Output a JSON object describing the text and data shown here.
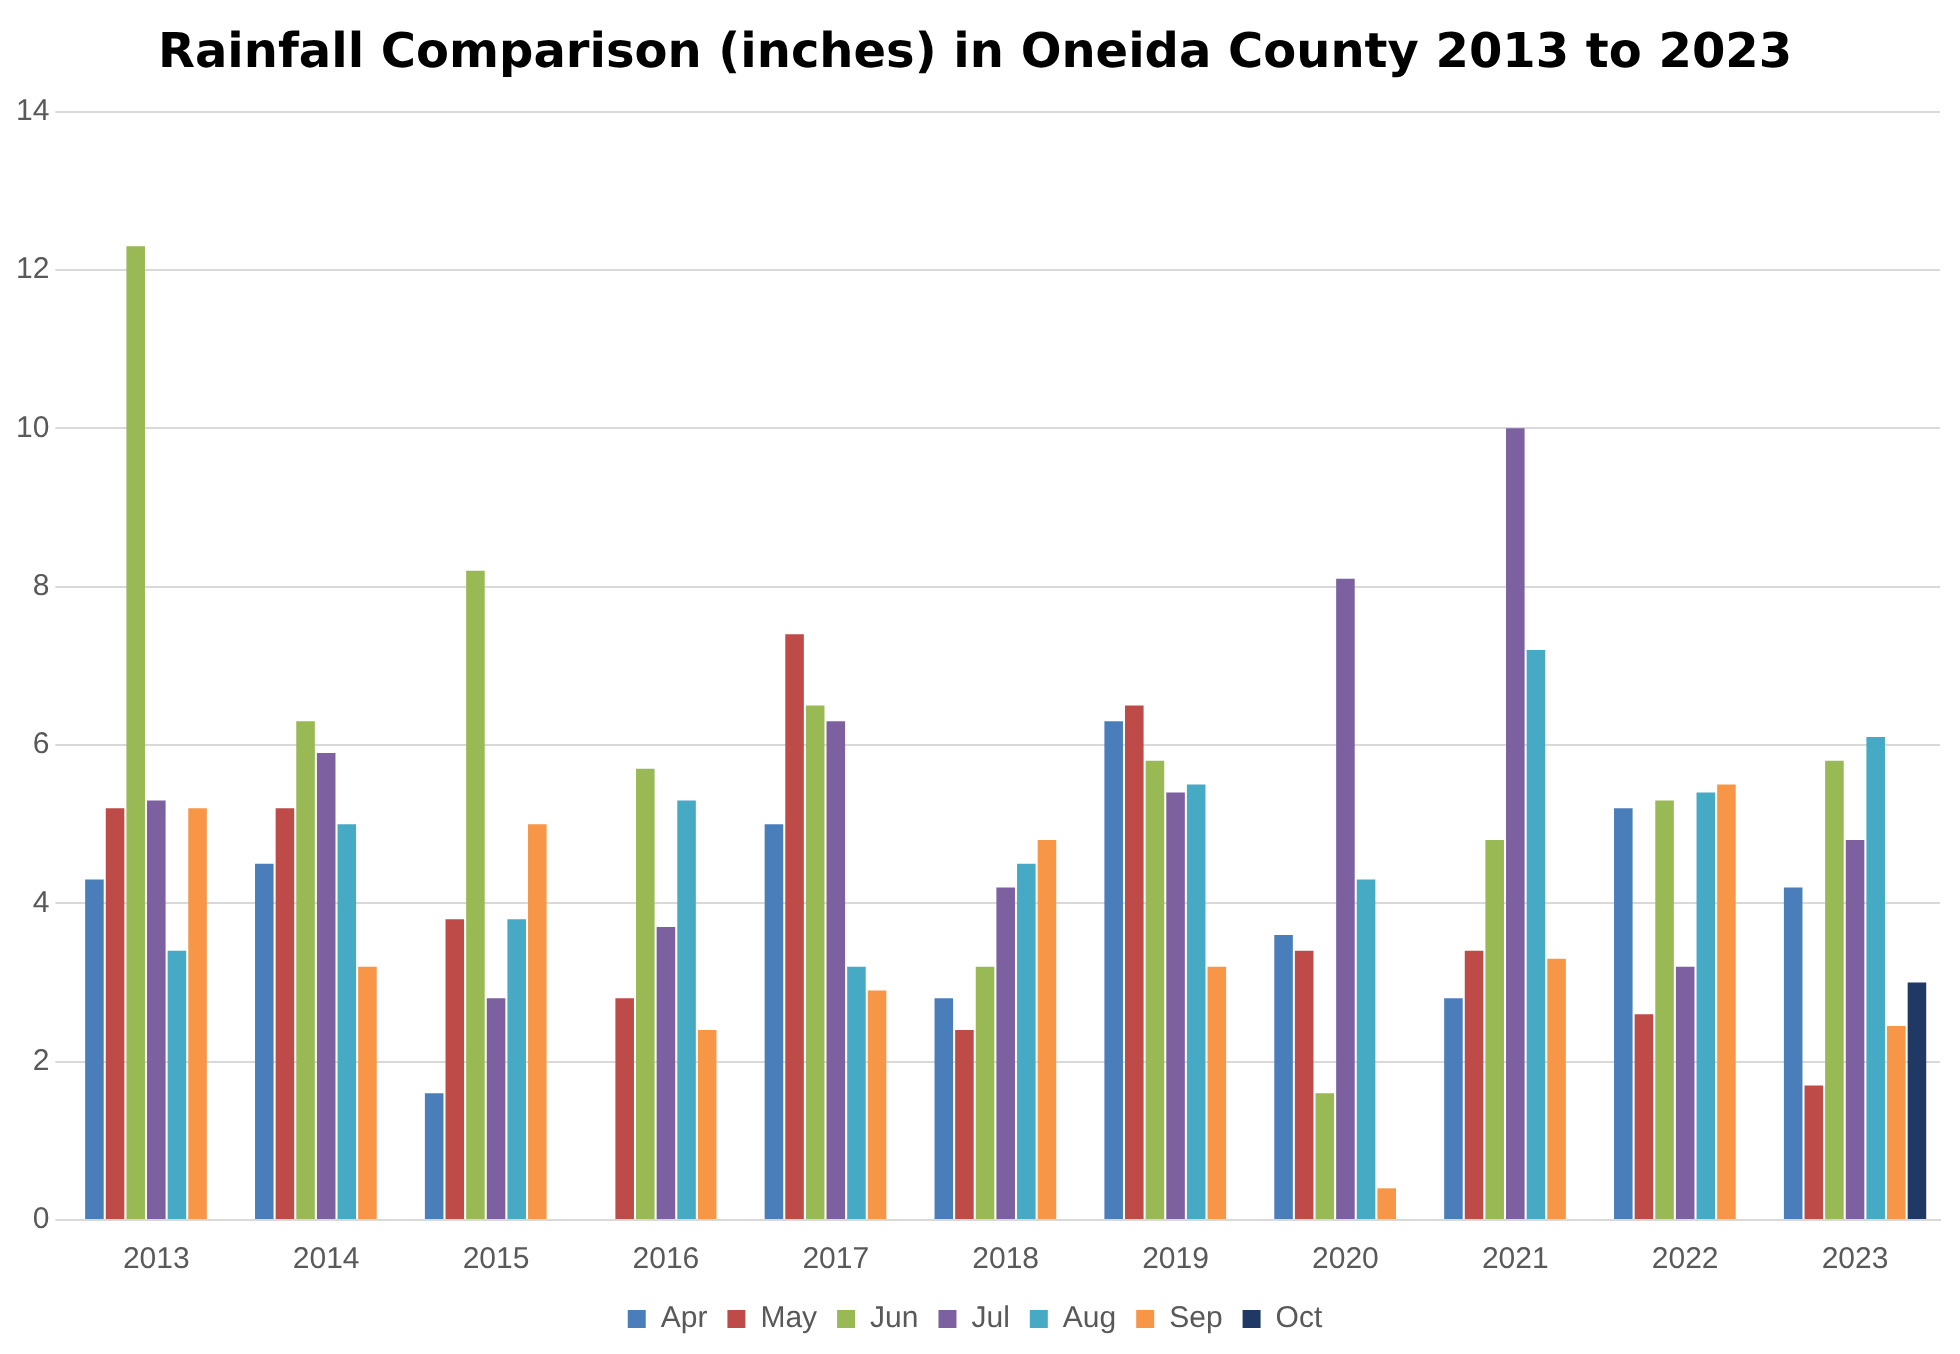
{
  "chart_data": {
    "type": "bar",
    "title": "Rainfall Comparison (inches) in Oneida County 2013 to 2023",
    "categories": [
      "2013",
      "2014",
      "2015",
      "2016",
      "2017",
      "2018",
      "2019",
      "2020",
      "2021",
      "2022",
      "2023"
    ],
    "series": [
      {
        "name": "Apr",
        "color": "#4a7ebb",
        "values": [
          4.3,
          4.5,
          1.6,
          null,
          5.0,
          2.8,
          6.3,
          3.6,
          2.8,
          5.2,
          4.2
        ]
      },
      {
        "name": "May",
        "color": "#be4b48",
        "values": [
          5.2,
          5.2,
          3.8,
          2.8,
          7.4,
          2.4,
          6.5,
          3.4,
          3.4,
          2.6,
          1.7
        ]
      },
      {
        "name": "Jun",
        "color": "#98b954",
        "values": [
          12.3,
          6.3,
          8.2,
          5.7,
          6.5,
          3.2,
          5.8,
          1.6,
          4.8,
          5.3,
          5.8
        ]
      },
      {
        "name": "Jul",
        "color": "#7d60a0",
        "values": [
          5.3,
          5.9,
          2.8,
          3.7,
          6.3,
          4.2,
          5.4,
          8.1,
          10.0,
          3.2,
          4.8
        ]
      },
      {
        "name": "Aug",
        "color": "#46aac5",
        "values": [
          3.4,
          5.0,
          3.8,
          5.3,
          3.2,
          4.5,
          5.5,
          4.3,
          7.2,
          5.4,
          6.1
        ]
      },
      {
        "name": "Sep",
        "color": "#f79646",
        "values": [
          5.2,
          3.2,
          5.0,
          2.4,
          2.9,
          4.8,
          3.2,
          0.4,
          3.3,
          5.5,
          2.45
        ]
      },
      {
        "name": "Oct",
        "color": "#1f3864",
        "values": [
          null,
          null,
          null,
          null,
          null,
          null,
          null,
          null,
          null,
          null,
          3.0
        ]
      }
    ],
    "ylim": [
      0,
      14
    ],
    "yticks": [
      0,
      2,
      4,
      6,
      8,
      10,
      12,
      14
    ],
    "grid": "y",
    "legend": "bottom"
  }
}
